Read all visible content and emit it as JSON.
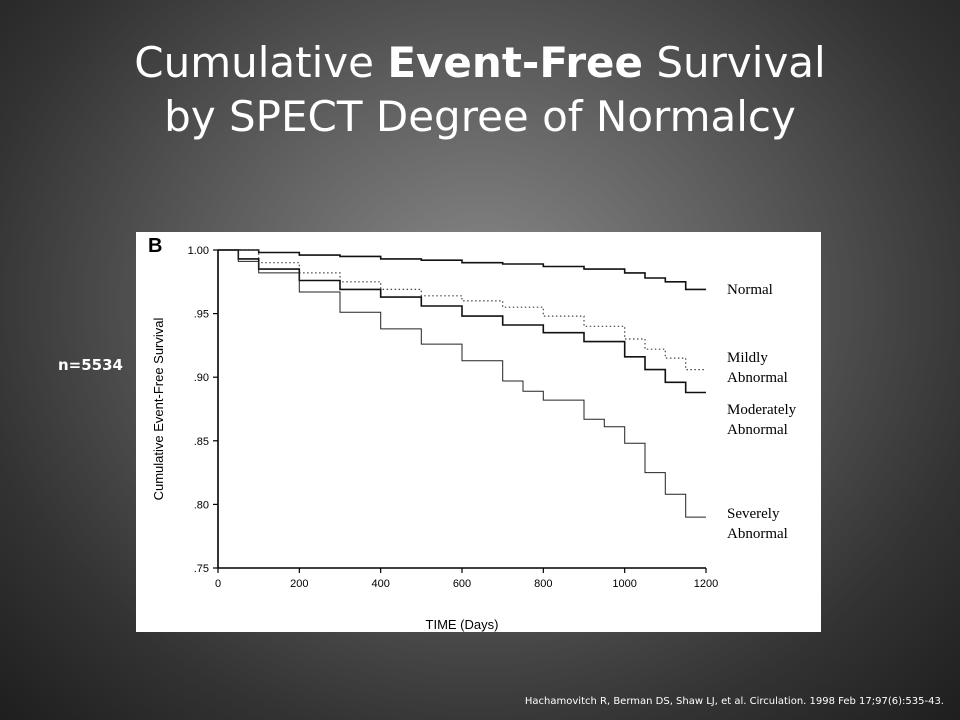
{
  "slide": {
    "title_line1_pre": "Cumulative ",
    "title_line1_bold": "Event-Free",
    "title_line1_post": " Survival",
    "title_line2": "by SPECT Degree of Normalcy",
    "sample_size": "n=5534",
    "citation": "Hachamovitch R, Berman DS, Shaw LJ, et al. Circulation. 1998 Feb 17;97(6):535-43."
  },
  "chart_data": {
    "type": "line",
    "panel_label": "B",
    "xlabel": "TIME (Days)",
    "ylabel": "Cumulative Event-Free Survival",
    "xlim": [
      0,
      1200
    ],
    "ylim": [
      0.75,
      1.0
    ],
    "x_ticks": [
      "0",
      "200",
      "400",
      "600",
      "800",
      "1000",
      "1200"
    ],
    "y_ticks": [
      "1.00",
      ".95",
      ".90",
      ".85",
      ".80",
      ".75"
    ],
    "grid": false,
    "series": [
      {
        "name": "Normal",
        "label_lines": [
          "Normal"
        ],
        "style": "solid",
        "x": [
          0,
          100,
          200,
          300,
          400,
          500,
          600,
          700,
          800,
          900,
          1000,
          1050,
          1100,
          1150,
          1200
        ],
        "y": [
          1.0,
          0.998,
          0.996,
          0.995,
          0.993,
          0.992,
          0.99,
          0.989,
          0.987,
          0.985,
          0.982,
          0.978,
          0.975,
          0.969,
          0.969
        ]
      },
      {
        "name": "Mildly Abnormal",
        "label_lines": [
          "Mildly",
          "Abnormal"
        ],
        "style": "dotted",
        "x": [
          0,
          100,
          200,
          300,
          400,
          500,
          600,
          700,
          800,
          900,
          1000,
          1050,
          1100,
          1150,
          1200
        ],
        "y": [
          1.0,
          0.99,
          0.982,
          0.975,
          0.969,
          0.964,
          0.96,
          0.955,
          0.948,
          0.94,
          0.93,
          0.922,
          0.915,
          0.906,
          0.906
        ]
      },
      {
        "name": "Moderately Abnormal",
        "label_lines": [
          "Moderately",
          "Abnormal"
        ],
        "style": "solid",
        "x": [
          0,
          50,
          100,
          200,
          300,
          400,
          500,
          600,
          700,
          800,
          900,
          1000,
          1050,
          1100,
          1150,
          1200
        ],
        "y": [
          1.0,
          0.993,
          0.985,
          0.976,
          0.969,
          0.963,
          0.956,
          0.948,
          0.941,
          0.935,
          0.928,
          0.916,
          0.906,
          0.896,
          0.888,
          0.888
        ]
      },
      {
        "name": "Severely Abnormal",
        "label_lines": [
          "Severely",
          "Abnormal"
        ],
        "style": "thin",
        "x": [
          0,
          50,
          100,
          200,
          300,
          400,
          500,
          600,
          700,
          750,
          800,
          900,
          950,
          1000,
          1050,
          1100,
          1150,
          1200
        ],
        "y": [
          1.0,
          0.991,
          0.982,
          0.967,
          0.951,
          0.938,
          0.926,
          0.913,
          0.897,
          0.889,
          0.882,
          0.867,
          0.861,
          0.848,
          0.825,
          0.808,
          0.79,
          0.79
        ]
      }
    ]
  }
}
